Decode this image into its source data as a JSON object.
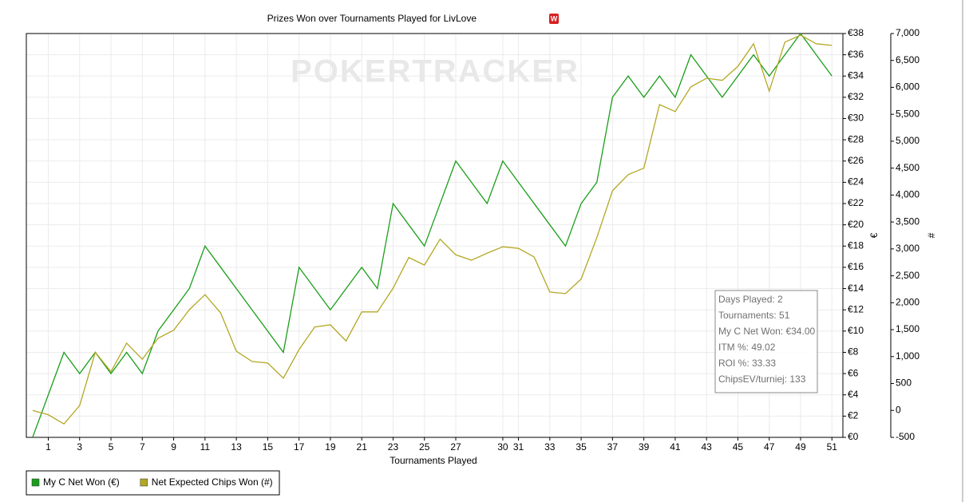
{
  "chart_data": {
    "type": "line",
    "title": "Prizes Won over Tournaments Played for LivLove",
    "watermark": "POKERTRACKER",
    "x_label": "Tournaments Played",
    "y_label": "€",
    "y2_label": "#",
    "x": [
      0,
      1,
      2,
      3,
      4,
      5,
      6,
      7,
      8,
      9,
      10,
      11,
      12,
      13,
      14,
      15,
      16,
      17,
      18,
      19,
      20,
      21,
      22,
      23,
      24,
      25,
      26,
      27,
      28,
      29,
      30,
      31,
      32,
      33,
      34,
      35,
      36,
      37,
      38,
      39,
      40,
      41,
      42,
      43,
      44,
      45,
      46,
      47,
      48,
      49,
      50,
      51
    ],
    "xlim": [
      -0.4,
      51.7
    ],
    "xticks": [
      1,
      3,
      5,
      7,
      9,
      11,
      13,
      15,
      17,
      19,
      21,
      23,
      25,
      27,
      30,
      31,
      33,
      35,
      37,
      39,
      41,
      43,
      45,
      47,
      49,
      51
    ],
    "ylim": [
      0,
      38
    ],
    "yticks": [
      {
        "value": 0,
        "label": "€0"
      },
      {
        "value": 2,
        "label": "€2"
      },
      {
        "value": 4,
        "label": "€4"
      },
      {
        "value": 6,
        "label": "€6"
      },
      {
        "value": 8,
        "label": "€8"
      },
      {
        "value": 10,
        "label": "€10"
      },
      {
        "value": 12,
        "label": "€12"
      },
      {
        "value": 14,
        "label": "€14"
      },
      {
        "value": 16,
        "label": "€16"
      },
      {
        "value": 18,
        "label": "€18"
      },
      {
        "value": 20,
        "label": "€20"
      },
      {
        "value": 22,
        "label": "€22"
      },
      {
        "value": 24,
        "label": "€24"
      },
      {
        "value": 26,
        "label": "€26"
      },
      {
        "value": 28,
        "label": "€28"
      },
      {
        "value": 30,
        "label": "€30"
      },
      {
        "value": 32,
        "label": "€32"
      },
      {
        "value": 34,
        "label": "€34"
      },
      {
        "value": 36,
        "label": "€36"
      },
      {
        "value": 38,
        "label": "€38"
      }
    ],
    "y2lim": [
      -500,
      7000
    ],
    "y2ticks": [
      -500,
      0,
      500,
      {
        "value": 1000,
        "label": "1,000"
      },
      {
        "value": 1500,
        "label": "1,500"
      },
      {
        "value": 2000,
        "label": "2,000"
      },
      {
        "value": 2500,
        "label": "2,500"
      },
      {
        "value": 3000,
        "label": "3,000"
      },
      {
        "value": 3500,
        "label": "3,500"
      },
      {
        "value": 4000,
        "label": "4,000"
      },
      {
        "value": 4500,
        "label": "4,500"
      },
      {
        "value": 5000,
        "label": "5,000"
      },
      {
        "value": 5500,
        "label": "5,500"
      },
      {
        "value": 6000,
        "label": "6,000"
      },
      {
        "value": 6500,
        "label": "6,500"
      },
      {
        "value": 7000,
        "label": "7,000"
      }
    ],
    "grid": true,
    "series": [
      {
        "name": "My C Net Won (€)",
        "color": "#1a9e1a",
        "axis": "y",
        "values": [
          0,
          4,
          8,
          6,
          8,
          6,
          8,
          6,
          10,
          12,
          14,
          18,
          16,
          14,
          12,
          10,
          8,
          16,
          14,
          12,
          14,
          16,
          14,
          22,
          20,
          18,
          22,
          26,
          24,
          22,
          26,
          24,
          22,
          20,
          18,
          22,
          24,
          32,
          34,
          32,
          34,
          32,
          36,
          34,
          32,
          34,
          36,
          34,
          36,
          38,
          36,
          34
        ]
      },
      {
        "name": "Net Expected Chips Won (#)",
        "color": "#b3a824",
        "axis": "y2",
        "values": [
          0,
          -80,
          -250,
          90,
          1080,
          720,
          1250,
          950,
          1340,
          1490,
          1870,
          2150,
          1810,
          1100,
          910,
          880,
          600,
          1130,
          1550,
          1590,
          1290,
          1830,
          1830,
          2270,
          2840,
          2700,
          3180,
          2890,
          2790,
          2920,
          3040,
          3010,
          2850,
          2200,
          2170,
          2440,
          3210,
          4080,
          4380,
          4500,
          5680,
          5550,
          6010,
          6170,
          6130,
          6390,
          6810,
          5930,
          6840,
          6970,
          6810,
          6780
        ]
      }
    ],
    "annotations": [
      "Days Played: 2",
      "Tournaments: 51",
      "My C Net Won: €34.00",
      "ITM %: 49.02",
      "ROI %: 33.33",
      "ChipsEV/turniej: 133"
    ]
  }
}
